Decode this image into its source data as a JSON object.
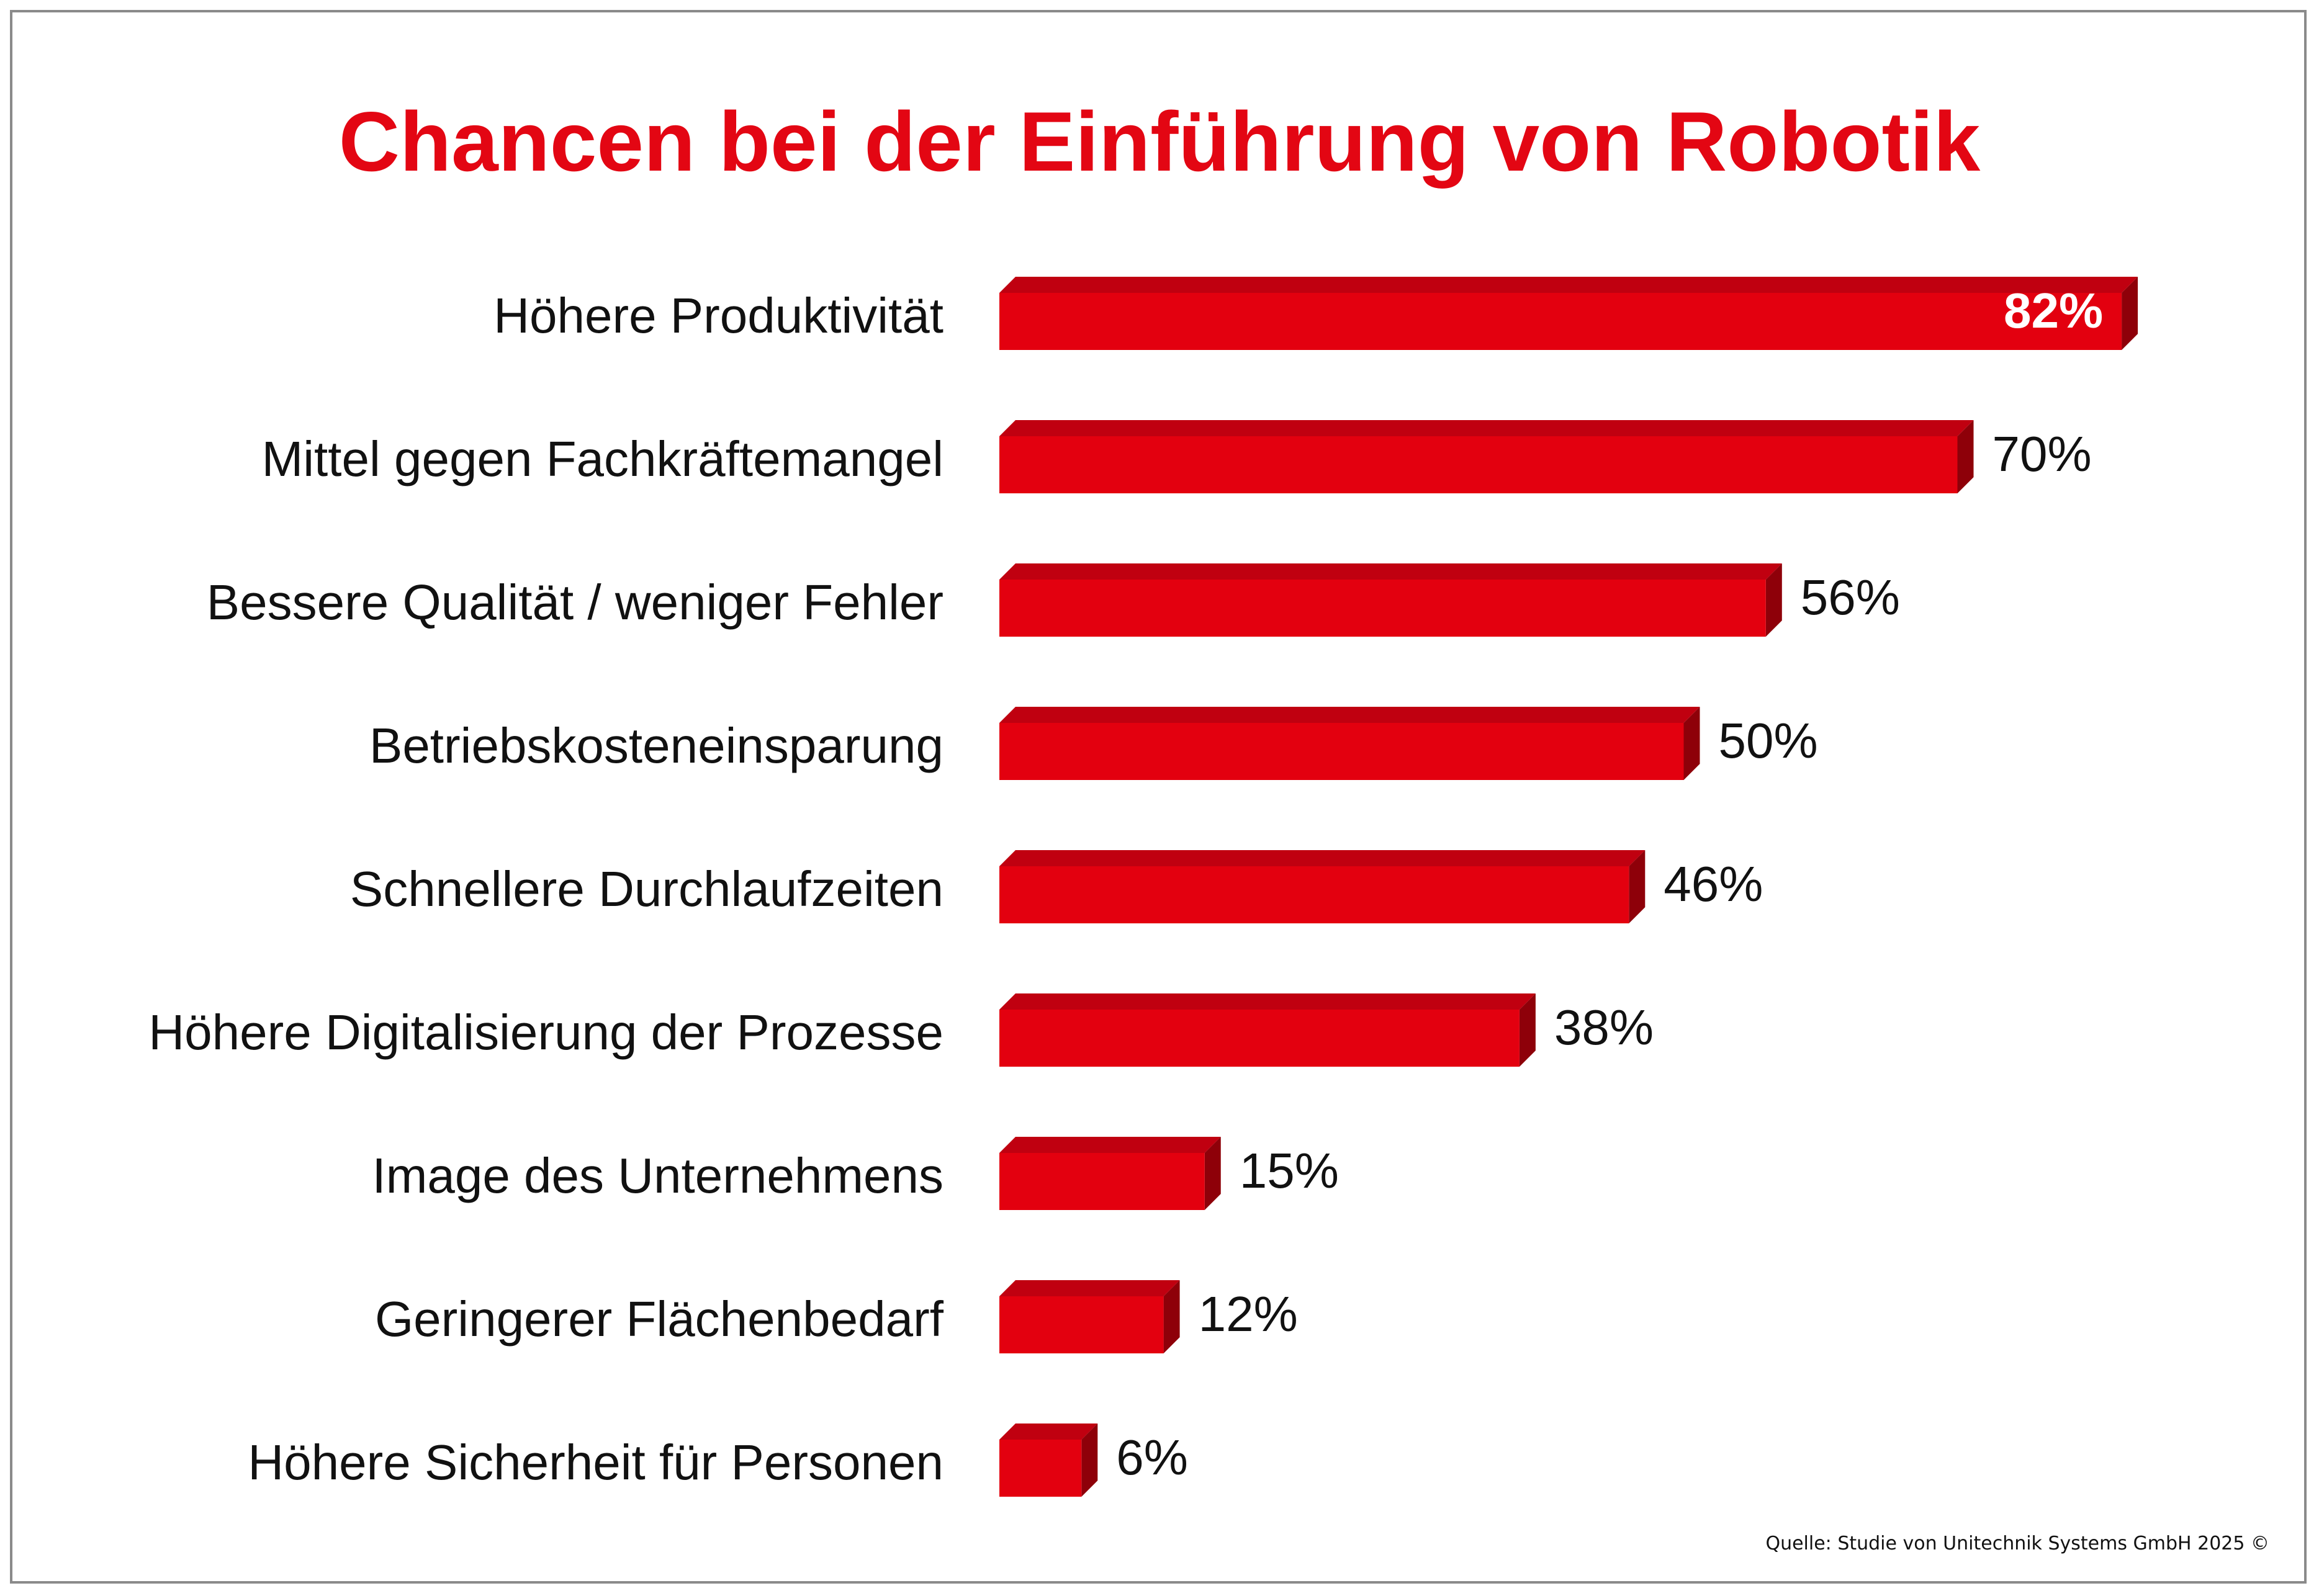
{
  "title": "Chancen bei der Einführung von Robotik",
  "source": "Quelle: Studie von Unitechnik Systems GmbH 2025 ©",
  "colors": {
    "title": "#e30613",
    "bar_front": "#e3000f",
    "bar_top": "#c00010",
    "bar_side": "#8e0009",
    "inside_label": "#ffffff",
    "label": "#111111"
  },
  "chart_data": {
    "type": "bar",
    "orientation": "horizontal",
    "categories": [
      "Höhere Produktivität",
      "Mittel gegen Fachkräftemangel",
      "Bessere Qualität / weniger Fehler",
      "Betriebskosteneinsparung",
      "Schnellere Durchlaufzeiten",
      "Höhere Digitalisierung der Prozesse",
      "Image des Unternehmens",
      "Geringerer Flächenbedarf",
      "Höhere Sicherheit für Personen"
    ],
    "values": [
      82,
      70,
      56,
      50,
      46,
      38,
      15,
      12,
      6
    ],
    "value_labels": [
      "82%",
      "70%",
      "56%",
      "50%",
      "46%",
      "38%",
      "15%",
      "12%",
      "6%"
    ],
    "unit": "%",
    "style": "3d",
    "grid": false,
    "legend": "none"
  }
}
